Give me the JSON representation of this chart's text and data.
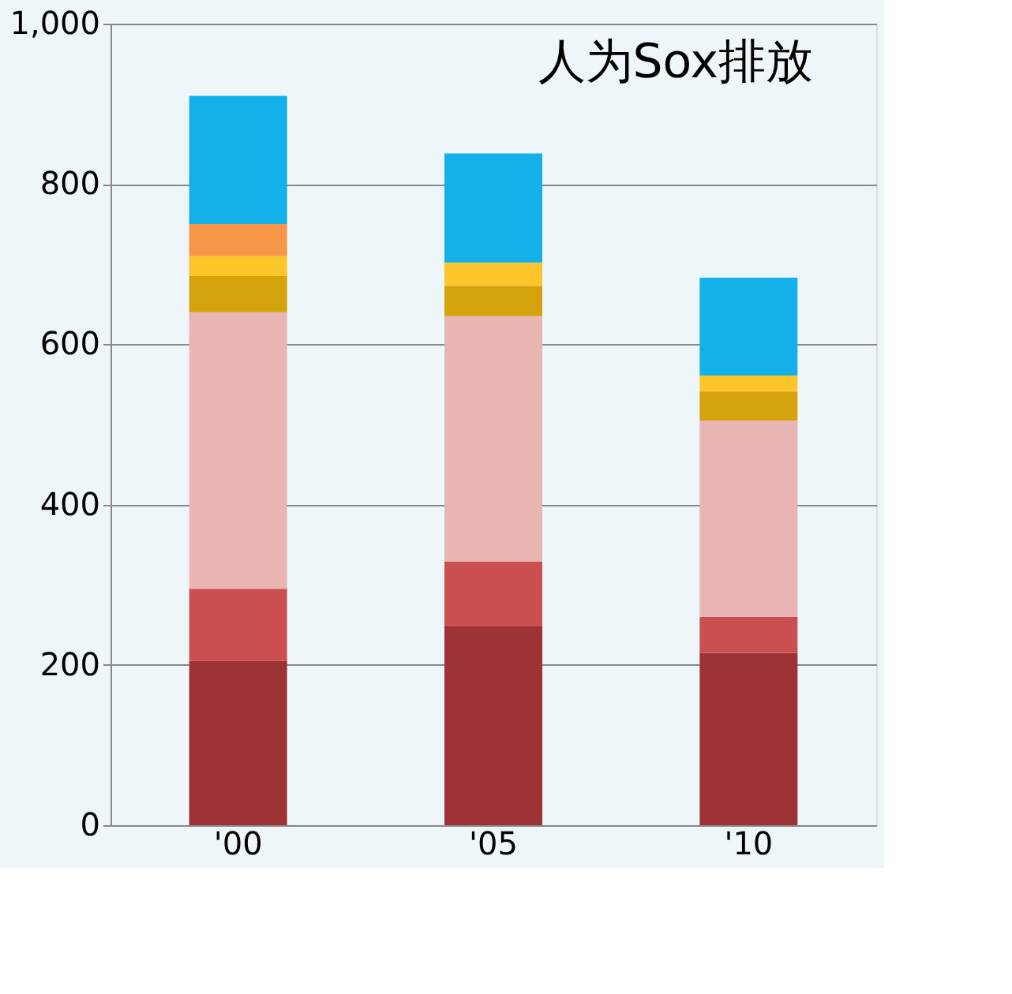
{
  "chart_data": {
    "type": "bar",
    "title": "人为Sox排放",
    "stacked": true,
    "categories": [
      "'00",
      "'05",
      "'10"
    ],
    "series": [
      {
        "color": "#9e3336",
        "values": [
          205,
          248,
          215
        ]
      },
      {
        "color": "#c9504f",
        "values": [
          90,
          81,
          45
        ]
      },
      {
        "color": "#e8b4b4",
        "values": [
          345,
          306,
          245
        ]
      },
      {
        "color": "#d4a20a",
        "values": [
          45,
          38,
          36
        ]
      },
      {
        "color": "#fcc62b",
        "values": [
          25,
          29,
          20
        ]
      },
      {
        "color": "#f79646",
        "values": [
          40,
          0,
          0
        ]
      },
      {
        "color": "#14b0ea",
        "values": [
          160,
          136,
          122
        ]
      }
    ],
    "ylim": [
      0,
      1000
    ],
    "yticks": [
      0,
      200,
      400,
      600,
      800,
      {
        "value": 1000,
        "label": "1,000"
      }
    ],
    "grid": "y",
    "legend": false
  }
}
